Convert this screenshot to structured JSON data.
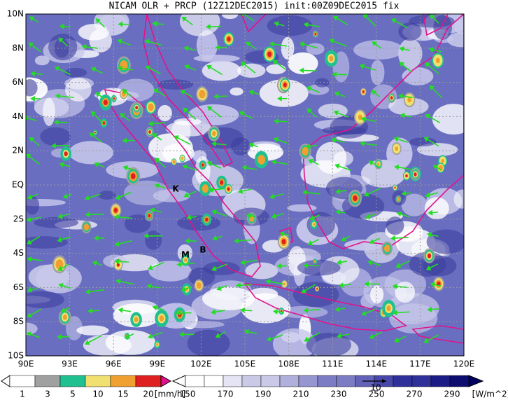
{
  "title": "NICAM OLR + PRCP (12Z12DEC2015) init:00Z09DEC2015 fix",
  "map": {
    "lat_labels": [
      "10N",
      "8N",
      "6N",
      "4N",
      "2N",
      "EQ",
      "2S",
      "4S",
      "6S",
      "8S",
      "10S"
    ],
    "lon_labels": [
      "90E",
      "93E",
      "96E",
      "99E",
      "102E",
      "105E",
      "108E",
      "111E",
      "114E",
      "117E",
      "120E"
    ],
    "place_labels": [
      "K",
      "M",
      "B"
    ]
  },
  "precip_legend": {
    "labels": [
      "1",
      "3",
      "5",
      "10",
      "15",
      "20"
    ],
    "unit": "[mm/h]"
  },
  "olr_legend": {
    "labels": [
      "150",
      "170",
      "190",
      "210",
      "230",
      "250",
      "270",
      "290"
    ],
    "unit": "[W/m^2]"
  },
  "vector_reference": "10"
}
